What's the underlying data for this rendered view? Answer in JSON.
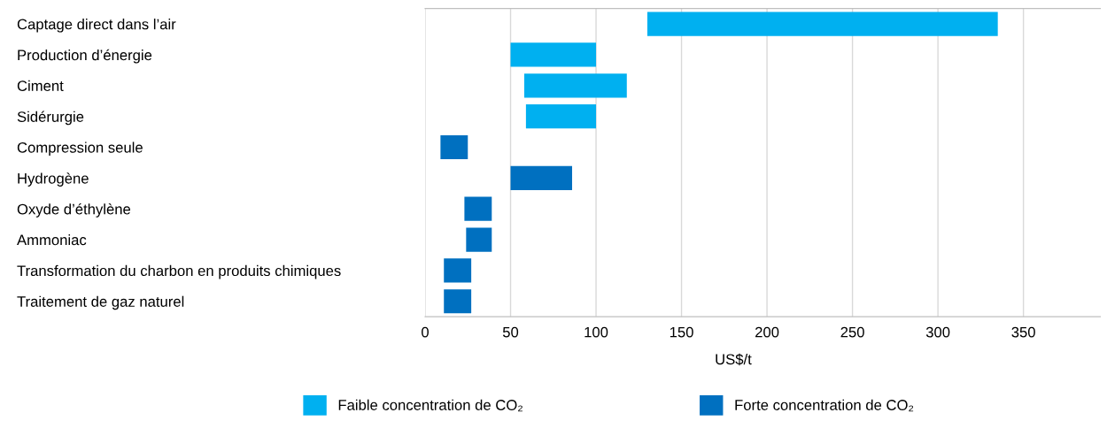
{
  "chart_data": {
    "type": "bar",
    "orientation": "horizontal",
    "xlabel": "US$/t",
    "categories": [
      "Captage direct dans l’air",
      "Production d’énergie",
      "Ciment",
      "Sidérurgie",
      "Compression seule",
      "Hydrogène",
      "Oxyde d’éthylène",
      "Ammoniac",
      "Transformation du charbon en produits chimiques",
      "Traitement de gaz naturel"
    ],
    "series": [
      {
        "name": "Faible concentration de CO₂",
        "color": "#00b0f0",
        "base": [
          130,
          50,
          58,
          59,
          null,
          null,
          null,
          null,
          null,
          null
        ],
        "values": [
          205,
          50,
          60,
          41,
          null,
          null,
          null,
          null,
          null,
          null
        ]
      },
      {
        "name": "Forte concentration de CO₂",
        "color": "#0070c0",
        "base": [
          null,
          null,
          null,
          null,
          9,
          50,
          23,
          24,
          11,
          11
        ],
        "values": [
          null,
          null,
          null,
          null,
          16,
          36,
          16,
          15,
          16,
          16
        ]
      }
    ],
    "xlim": [
      0,
      395
    ],
    "xticks": [
      0,
      50,
      100,
      150,
      200,
      250,
      300,
      350
    ],
    "grid": "x",
    "legend": "bottom"
  }
}
